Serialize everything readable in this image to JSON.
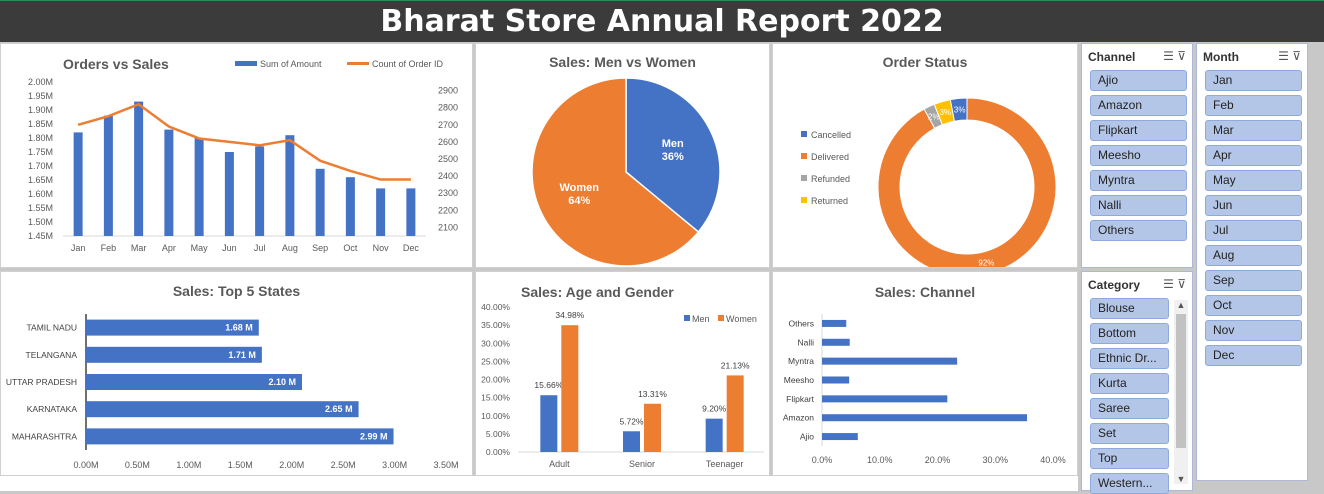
{
  "title": "Bharat Store Annual Report 2022",
  "orders_sales": {
    "title": "Orders vs Sales",
    "legend": [
      "Sum of Amount",
      "Count of Order ID"
    ],
    "colors": [
      "#4472c4",
      "#ed7d31"
    ],
    "chart_data": {
      "type": "bar",
      "categories": [
        "Jan",
        "Feb",
        "Mar",
        "Apr",
        "May",
        "Jun",
        "Jul",
        "Aug",
        "Sep",
        "Oct",
        "Nov",
        "Dec"
      ],
      "series": [
        {
          "name": "Sum of Amount",
          "values": [
            1.82,
            1.88,
            1.93,
            1.83,
            1.8,
            1.75,
            1.77,
            1.81,
            1.69,
            1.66,
            1.62,
            1.62
          ]
        },
        {
          "name": "Count of Order ID",
          "values": [
            2700,
            2750,
            2820,
            2690,
            2620,
            2600,
            2580,
            2610,
            2490,
            2430,
            2380,
            2380
          ]
        }
      ],
      "y_left_ticks": [
        "2.00M",
        "1.95M",
        "1.90M",
        "1.85M",
        "1.80M",
        "1.75M",
        "1.70M",
        "1.65M",
        "1.60M",
        "1.55M",
        "1.50M",
        "1.45M"
      ],
      "y_right_ticks": [
        "2900",
        "2800",
        "2700",
        "2600",
        "2500",
        "2400",
        "2300",
        "2200",
        "2100"
      ],
      "ylim_left": [
        1.45,
        2.0
      ],
      "ylim_right": [
        2050,
        2950
      ]
    }
  },
  "men_women": {
    "title": "Sales: Men vs Women",
    "chart_data": {
      "type": "pie",
      "labels": [
        "Men",
        "Women"
      ],
      "values": [
        36,
        64
      ],
      "value_labels": [
        "36%",
        "64%"
      ],
      "colors": [
        "#4472c4",
        "#ed7d31"
      ]
    }
  },
  "order_status": {
    "title": "Order Status",
    "chart_data": {
      "type": "pie",
      "labels": [
        "Cancelled",
        "Delivered",
        "Refunded",
        "Returned"
      ],
      "values": [
        3,
        92,
        2,
        3
      ],
      "value_labels": [
        "3%",
        "92%",
        "2%",
        "3%"
      ],
      "colors": [
        "#4472c4",
        "#ed7d31",
        "#a5a5a5",
        "#ffc000"
      ]
    }
  },
  "channel_slicer": {
    "header": "Channel",
    "items": [
      "Ajio",
      "Amazon",
      "Flipkart",
      "Meesho",
      "Myntra",
      "Nalli",
      "Others"
    ]
  },
  "month_slicer": {
    "header": "Month",
    "items": [
      "Jan",
      "Feb",
      "Mar",
      "Apr",
      "May",
      "Jun",
      "Jul",
      "Aug",
      "Sep",
      "Oct",
      "Nov",
      "Dec"
    ]
  },
  "category_slicer": {
    "header": "Category",
    "items": [
      "Blouse",
      "Bottom",
      "Ethnic Dr...",
      "Kurta",
      "Saree",
      "Set",
      "Top",
      "Western..."
    ]
  },
  "top_states": {
    "title": "Sales: Top 5 States",
    "chart_data": {
      "type": "bar",
      "categories": [
        "TAMIL NADU",
        "TELANGANA",
        "UTTAR PRADESH",
        "KARNATAKA",
        "MAHARASHTRA"
      ],
      "values": [
        1.68,
        1.71,
        2.1,
        2.65,
        2.99
      ],
      "value_labels": [
        "1.68 M",
        "1.71 M",
        "2.10 M",
        "2.65 M",
        "2.99 M"
      ],
      "x_ticks": [
        "0.00M",
        "0.50M",
        "1.00M",
        "1.50M",
        "2.00M",
        "2.50M",
        "3.00M",
        "3.50M"
      ],
      "xlim": [
        0,
        3.5
      ],
      "color": "#4472c4"
    }
  },
  "age_gender": {
    "title": "Sales: Age and Gender",
    "legend": [
      "Men",
      "Women"
    ],
    "chart_data": {
      "type": "bar",
      "categories": [
        "Adult",
        "Senior",
        "Teenager"
      ],
      "series": [
        {
          "name": "Men",
          "values": [
            15.66,
            5.72,
            9.2
          ],
          "value_labels": [
            "15.66%",
            "5.72%",
            "9.20%"
          ]
        },
        {
          "name": "Women",
          "values": [
            34.98,
            13.31,
            21.13
          ],
          "value_labels": [
            "34.98%",
            "13.31%",
            "21.13%"
          ]
        }
      ],
      "y_ticks": [
        "40.00%",
        "35.00%",
        "30.00%",
        "25.00%",
        "20.00%",
        "15.00%",
        "10.00%",
        "5.00%",
        "0.00%"
      ],
      "ylim": [
        0,
        40
      ],
      "colors": [
        "#4472c4",
        "#ed7d31"
      ]
    }
  },
  "channel": {
    "title": "Sales: Channel",
    "chart_data": {
      "type": "bar",
      "categories": [
        "Others",
        "Nalli",
        "Myntra",
        "Meesho",
        "Flipkart",
        "Amazon",
        "Ajio"
      ],
      "values": [
        4.2,
        4.8,
        23.4,
        4.7,
        21.7,
        35.5,
        6.2
      ],
      "x_ticks": [
        "0.0%",
        "10.0%",
        "20.0%",
        "30.0%",
        "40.0%"
      ],
      "xlim": [
        0,
        40
      ],
      "color": "#4472c4"
    }
  }
}
